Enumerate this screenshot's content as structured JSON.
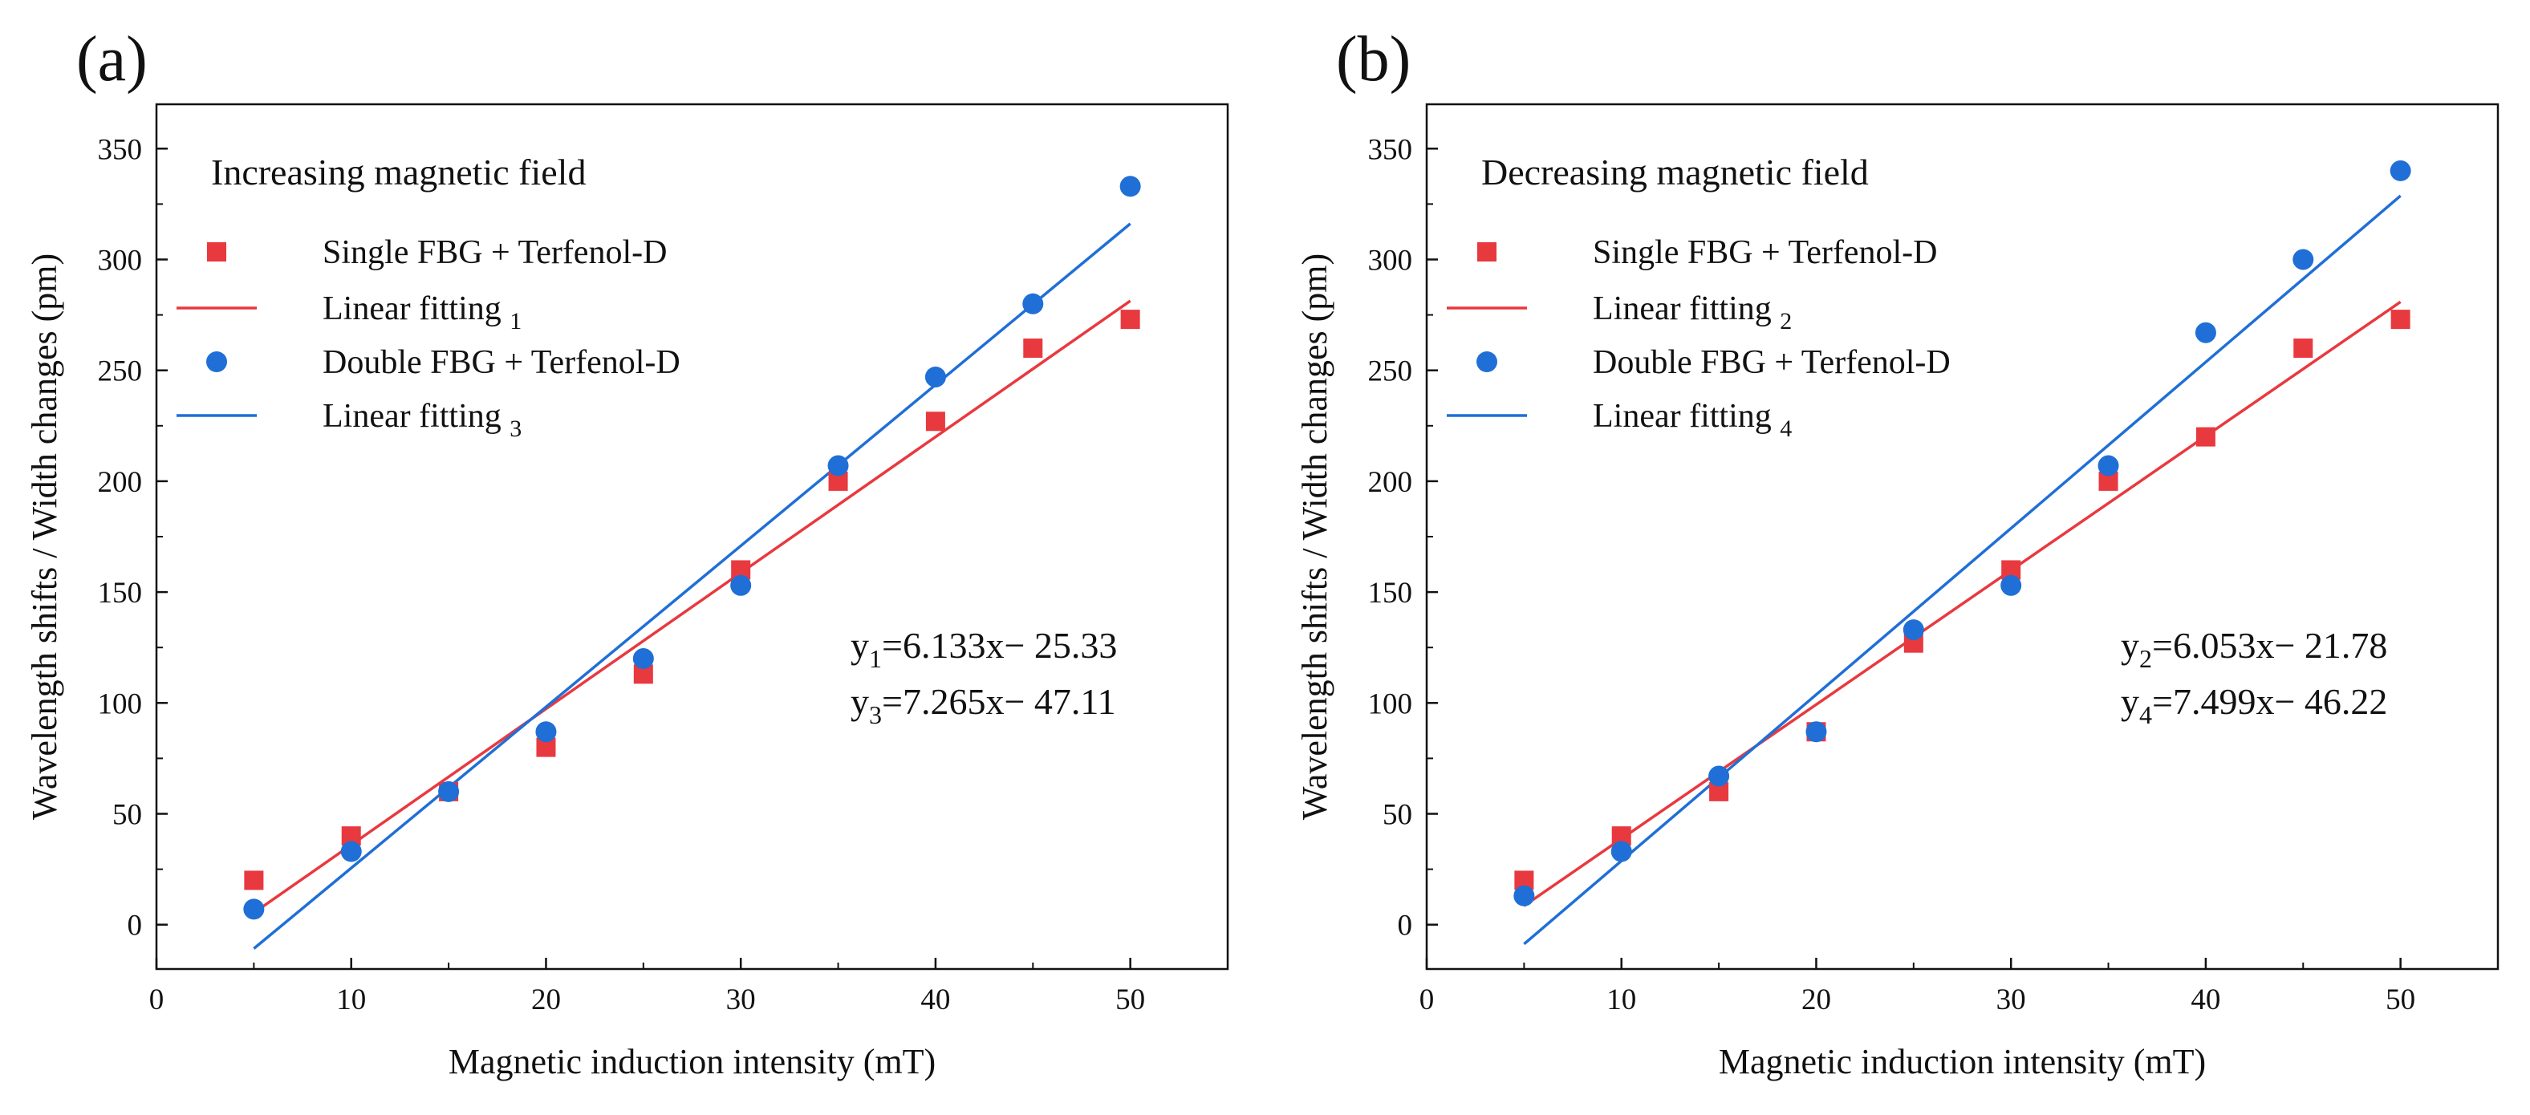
{
  "chart_data": [
    {
      "type": "scatter",
      "panel_label": "(a)",
      "title": "Increasing magnetic field",
      "xlabel": "Magnetic induction intensity (mT)",
      "ylabel": "Wavelength shifts / Width changes (pm)",
      "xlim": [
        0,
        55
      ],
      "ylim": [
        -20,
        370
      ],
      "xticks": [
        0,
        10,
        20,
        30,
        40,
        50
      ],
      "yticks": [
        0,
        50,
        100,
        150,
        200,
        250,
        300,
        350
      ],
      "legend_position": "top-left",
      "series": [
        {
          "name": "Single FBG + Terfenol-D",
          "kind": "points",
          "marker": "square",
          "color": "#e8393f",
          "x": [
            5,
            10,
            15,
            20,
            25,
            30,
            35,
            40,
            45,
            50
          ],
          "y": [
            20,
            40,
            60,
            80,
            113,
            160,
            200,
            227,
            260,
            273
          ]
        },
        {
          "name": "Linear fitting ",
          "sub": "1",
          "kind": "fit",
          "color": "#e8393f",
          "slope": 6.133,
          "intercept": -25.33,
          "x_range": [
            5,
            50
          ]
        },
        {
          "name": "Double FBG + Terfenol-D",
          "kind": "points",
          "marker": "circle",
          "color": "#1f6fd6",
          "x": [
            5,
            10,
            15,
            20,
            25,
            30,
            35,
            40,
            45,
            50
          ],
          "y": [
            7,
            33,
            60,
            87,
            120,
            153,
            207,
            247,
            280,
            333
          ]
        },
        {
          "name": "Linear fitting ",
          "sub": "3",
          "kind": "fit",
          "color": "#1f6fd6",
          "slope": 7.265,
          "intercept": -47.11,
          "x_range": [
            5,
            50
          ]
        }
      ],
      "equations": [
        {
          "var": "y",
          "sub": "1",
          "rest": "=6.133x− 25.33"
        },
        {
          "var": "y",
          "sub": "3",
          "rest": "=7.265x− 47.11"
        }
      ]
    },
    {
      "type": "scatter",
      "panel_label": "(b)",
      "title": "Decreasing magnetic field",
      "xlabel": "Magnetic induction intensity (mT)",
      "ylabel": "Wavelength shifts / Width changes (pm)",
      "xlim": [
        0,
        55
      ],
      "ylim": [
        -20,
        370
      ],
      "xticks": [
        0,
        10,
        20,
        30,
        40,
        50
      ],
      "yticks": [
        0,
        50,
        100,
        150,
        200,
        250,
        300,
        350
      ],
      "legend_position": "top-left",
      "series": [
        {
          "name": "Single FBG + Terfenol-D",
          "kind": "points",
          "marker": "square",
          "color": "#e8393f",
          "x": [
            5,
            10,
            15,
            20,
            25,
            30,
            35,
            40,
            45,
            50
          ],
          "y": [
            20,
            40,
            60,
            87,
            127,
            160,
            200,
            220,
            260,
            273
          ]
        },
        {
          "name": "Linear fitting ",
          "sub": "2",
          "kind": "fit",
          "color": "#e8393f",
          "slope": 6.053,
          "intercept": -21.78,
          "x_range": [
            5,
            50
          ]
        },
        {
          "name": "Double FBG + Terfenol-D",
          "kind": "points",
          "marker": "circle",
          "color": "#1f6fd6",
          "x": [
            5,
            10,
            15,
            20,
            25,
            30,
            35,
            40,
            45,
            50
          ],
          "y": [
            13,
            33,
            67,
            87,
            133,
            153,
            207,
            267,
            300,
            340
          ]
        },
        {
          "name": "Linear fitting ",
          "sub": "4",
          "kind": "fit",
          "color": "#1f6fd6",
          "slope": 7.499,
          "intercept": -46.22,
          "x_range": [
            5,
            50
          ]
        }
      ],
      "equations": [
        {
          "var": "y",
          "sub": "2",
          "rest": "=6.053x− 21.78"
        },
        {
          "var": "y",
          "sub": "4",
          "rest": "=7.499x− 46.22"
        }
      ]
    }
  ]
}
